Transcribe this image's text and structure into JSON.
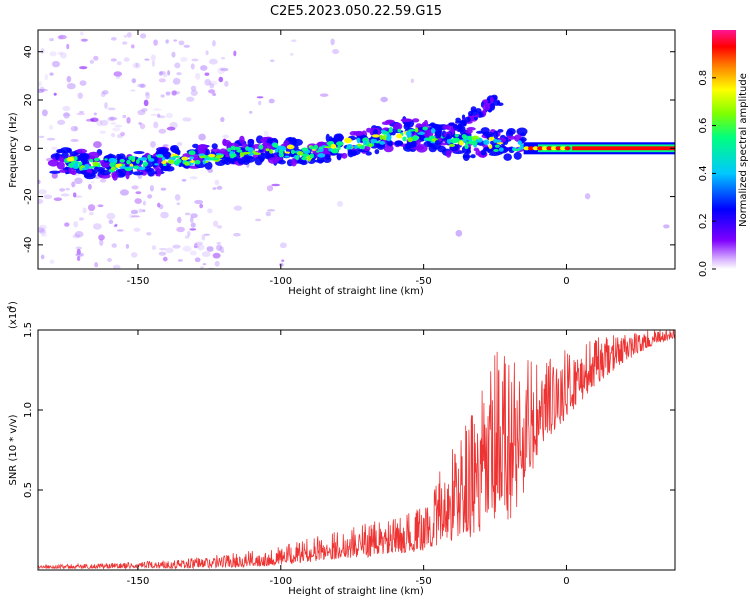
{
  "title": "C2E5.2023.050.22.59.G15",
  "chart_data": [
    {
      "type": "heatmap",
      "xlabel": "Height of straight line (km)",
      "ylabel": "Frequency (Hz)",
      "xlim": [
        -185,
        38
      ],
      "ylim": [
        -50,
        49
      ],
      "x_ticks": [
        -150,
        -100,
        -50,
        0
      ],
      "x_tick_labels": [
        "-150",
        "-100",
        "-50",
        "0"
      ],
      "y_ticks": [
        -40,
        -20,
        0,
        20,
        40
      ],
      "y_tick_labels": [
        "-40",
        "-20",
        "0",
        "20",
        "40"
      ],
      "colorbar": {
        "label": "Normalized spectral amplitude",
        "range": [
          0,
          1
        ],
        "ticks": [
          0.0,
          0.2,
          0.4,
          0.6,
          0.8
        ],
        "tick_labels": [
          "0.0",
          "0.2",
          "0.4",
          "0.6",
          "0.8"
        ],
        "colormap": [
          "#ffffff",
          "#7f00ff",
          "#0000ff",
          "#00c8ff",
          "#00ff7f",
          "#7fff00",
          "#ffff00",
          "#ff7f00",
          "#ff0000",
          "#ff1493"
        ]
      },
      "ridge": {
        "x": [
          -180,
          -170,
          -160,
          -150,
          -140,
          -130,
          -120,
          -110,
          -100,
          -90,
          -80,
          -70,
          -60,
          -50,
          -40,
          -30,
          -20,
          -10,
          0,
          10,
          20,
          30,
          38
        ],
        "y": [
          -5,
          -6,
          -7,
          -6,
          -5,
          -4,
          -2,
          -1,
          -1,
          -2,
          1,
          3,
          6,
          6,
          3,
          2,
          1,
          1,
          0,
          0,
          0,
          0,
          0
        ]
      },
      "branch": {
        "x": [
          -45,
          -40,
          -35,
          -30,
          -25
        ],
        "y": [
          4,
          8,
          12,
          16,
          19
        ]
      }
    },
    {
      "type": "line",
      "xlabel": "Height of straight line (km)",
      "ylabel": "SNR (10 * v/v)",
      "y_scale_label": "(x10",
      "y_scale_exp": "4",
      "y_scale_close": ")",
      "xlim": [
        -185,
        38
      ],
      "ylim": [
        0,
        1.5
      ],
      "x_ticks": [
        -150,
        -100,
        -50,
        0
      ],
      "x_tick_labels": [
        "-150",
        "-100",
        "-50",
        "0"
      ],
      "y_ticks": [
        0.5,
        1.0,
        1.5
      ],
      "y_tick_labels": [
        "0.5",
        "1.0",
        "1.5"
      ],
      "line_color": "#ee3333",
      "envelope": {
        "x": [
          -185,
          -150,
          -130,
          -110,
          -100,
          -90,
          -80,
          -70,
          -60,
          -50,
          -45,
          -40,
          -35,
          -30,
          -25,
          -20,
          -15,
          -10,
          -5,
          0,
          10,
          20,
          30,
          38
        ],
        "low": [
          0.01,
          0.01,
          0.01,
          0.02,
          0.03,
          0.05,
          0.07,
          0.08,
          0.1,
          0.12,
          0.15,
          0.18,
          0.2,
          0.22,
          0.25,
          0.3,
          0.45,
          0.7,
          0.85,
          0.95,
          1.15,
          1.3,
          1.4,
          1.45
        ],
        "high": [
          0.03,
          0.05,
          0.08,
          0.12,
          0.15,
          0.2,
          0.25,
          0.3,
          0.32,
          0.4,
          0.6,
          0.8,
          0.95,
          1.1,
          1.4,
          1.45,
          1.4,
          1.3,
          1.35,
          1.38,
          1.45,
          1.48,
          1.5,
          1.5
        ]
      }
    }
  ]
}
